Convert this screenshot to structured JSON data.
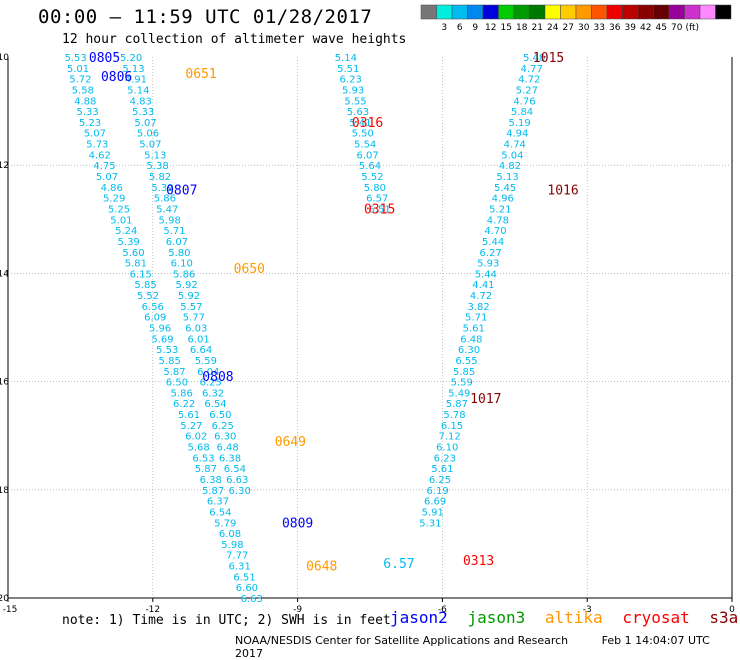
{
  "header": {
    "title": "00:00 — 11:59 UTC 01/28/2017",
    "subtitle": "12 hour collection of altimeter wave heights"
  },
  "colorbar": {
    "colors": [
      "#777777",
      "#00eedd",
      "#00bbee",
      "#0088ee",
      "#0000dd",
      "#00cc00",
      "#009900",
      "#007700",
      "#ffff00",
      "#ffcc00",
      "#ff9900",
      "#ff5500",
      "#ee0000",
      "#bb0000",
      "#880000",
      "#660000",
      "#990099",
      "#cc33cc",
      "#ff88ff",
      "#000000"
    ],
    "labels": [
      "3",
      "6",
      "9",
      "12",
      "15",
      "18",
      "21",
      "24",
      "27",
      "30",
      "33",
      "36",
      "39",
      "42",
      "45",
      "70",
      "(ft)"
    ]
  },
  "note": "note: 1) Time is in UTC; 2) SWH is in feet",
  "legend": [
    {
      "label": "jason2",
      "color": "#0000ff"
    },
    {
      "label": "jason3",
      "color": "#009900"
    },
    {
      "label": "altika",
      "color": "#ff9900"
    },
    {
      "label": "cryosat",
      "color": "#ff0000"
    },
    {
      "label": "s3a",
      "color": "#880000"
    }
  ],
  "footer": {
    "org": "NOAA/NESDIS Center for Satellite Applications and Research",
    "timestamp": "Feb  1 14:04:07 UTC 2017"
  },
  "chart_data": {
    "type": "scatter",
    "title": "00:00 — 11:59 UTC 01/28/2017",
    "xlim": [
      -15,
      0
    ],
    "ylim": [
      -20,
      -10
    ],
    "x_ticks": [
      "-15",
      "-12",
      "-9",
      "-6",
      "-3",
      "0"
    ],
    "y_ticks": [
      "-10",
      "-12",
      "-14",
      "-16",
      "-18",
      "-20"
    ],
    "tracks": [
      {
        "color": "#00bbee",
        "points": [
          {
            "x": -13.6,
            "y": -10.0,
            "v": "5.53"
          },
          {
            "x": -13.55,
            "y": -10.2,
            "v": "5.01"
          },
          {
            "x": -13.5,
            "y": -10.4,
            "v": "5.72"
          },
          {
            "x": -13.45,
            "y": -10.6,
            "v": "5.58"
          },
          {
            "x": -13.4,
            "y": -10.8,
            "v": "4.88"
          },
          {
            "x": -13.35,
            "y": -11.0,
            "v": "5.33"
          },
          {
            "x": -13.3,
            "y": -11.2,
            "v": "5.23"
          },
          {
            "x": -13.2,
            "y": -11.4,
            "v": "5.07"
          },
          {
            "x": -13.15,
            "y": -11.6,
            "v": "5.73"
          },
          {
            "x": -13.1,
            "y": -11.8,
            "v": "4.62"
          },
          {
            "x": -13.0,
            "y": -12.0,
            "v": "4.75"
          },
          {
            "x": -12.95,
            "y": -12.2,
            "v": "5.07"
          },
          {
            "x": -12.85,
            "y": -12.4,
            "v": "4.86"
          },
          {
            "x": -12.8,
            "y": -12.6,
            "v": "5.29"
          },
          {
            "x": -12.7,
            "y": -12.8,
            "v": "5.25"
          },
          {
            "x": -12.65,
            "y": -13.0,
            "v": "5.01"
          },
          {
            "x": -12.55,
            "y": -13.2,
            "v": "5.24"
          },
          {
            "x": -12.5,
            "y": -13.4,
            "v": "5.39"
          },
          {
            "x": -12.4,
            "y": -13.6,
            "v": "5.60"
          },
          {
            "x": -12.35,
            "y": -13.8,
            "v": "5.81"
          },
          {
            "x": -12.25,
            "y": -14.0,
            "v": "6.15"
          },
          {
            "x": -12.15,
            "y": -14.2,
            "v": "5.85"
          },
          {
            "x": -12.1,
            "y": -14.4,
            "v": "5.52"
          },
          {
            "x": -12.0,
            "y": -14.6,
            "v": "6.56"
          },
          {
            "x": -11.95,
            "y": -14.8,
            "v": "6.09"
          },
          {
            "x": -11.85,
            "y": -15.0,
            "v": "5.96"
          },
          {
            "x": -11.8,
            "y": -15.2,
            "v": "5.69"
          },
          {
            "x": -11.7,
            "y": -15.4,
            "v": "5.53"
          },
          {
            "x": -11.65,
            "y": -15.6,
            "v": "5.85"
          },
          {
            "x": -11.55,
            "y": -15.8,
            "v": "5.87"
          },
          {
            "x": -11.5,
            "y": -16.0,
            "v": "6.50"
          },
          {
            "x": -11.4,
            "y": -16.2,
            "v": "5.86"
          },
          {
            "x": -11.35,
            "y": -16.4,
            "v": "6.22"
          },
          {
            "x": -11.25,
            "y": -16.6,
            "v": "5.61"
          },
          {
            "x": -11.2,
            "y": -16.8,
            "v": "5.27"
          },
          {
            "x": -11.1,
            "y": -17.0,
            "v": "6.02"
          },
          {
            "x": -11.05,
            "y": -17.2,
            "v": "5.68"
          },
          {
            "x": -10.95,
            "y": -17.4,
            "v": "6.53"
          },
          {
            "x": -10.9,
            "y": -17.6,
            "v": "5.87"
          },
          {
            "x": -10.8,
            "y": -17.8,
            "v": "6.38"
          },
          {
            "x": -10.75,
            "y": -18.0,
            "v": "5.87"
          },
          {
            "x": -10.65,
            "y": -18.2,
            "v": "6.37"
          },
          {
            "x": -10.6,
            "y": -18.4,
            "v": "6.54"
          },
          {
            "x": -10.5,
            "y": -18.6,
            "v": "5.79"
          },
          {
            "x": -10.4,
            "y": -18.8,
            "v": "6.08"
          },
          {
            "x": -10.35,
            "y": -19.0,
            "v": "5.98"
          },
          {
            "x": -10.25,
            "y": -19.2,
            "v": "7.77"
          },
          {
            "x": -10.2,
            "y": -19.4,
            "v": "6.31"
          },
          {
            "x": -10.1,
            "y": -19.6,
            "v": "6.51"
          },
          {
            "x": -10.05,
            "y": -19.8,
            "v": "6.60"
          },
          {
            "x": -9.95,
            "y": -20.0,
            "v": "6.63"
          }
        ]
      },
      {
        "color": "#00bbee",
        "points": [
          {
            "x": -12.45,
            "y": -10.0,
            "v": "5.20"
          },
          {
            "x": -12.4,
            "y": -10.2,
            "v": "5.13"
          },
          {
            "x": -12.35,
            "y": -10.4,
            "v": "4.91"
          },
          {
            "x": -12.3,
            "y": -10.6,
            "v": "5.14"
          },
          {
            "x": -12.25,
            "y": -10.8,
            "v": "4.83"
          },
          {
            "x": -12.2,
            "y": -11.0,
            "v": "5.33"
          },
          {
            "x": -12.15,
            "y": -11.2,
            "v": "5.07"
          },
          {
            "x": -12.1,
            "y": -11.4,
            "v": "5.06"
          },
          {
            "x": -12.05,
            "y": -11.6,
            "v": "5.07"
          },
          {
            "x": -11.95,
            "y": -11.8,
            "v": "5.13"
          },
          {
            "x": -11.9,
            "y": -12.0,
            "v": "5.38"
          },
          {
            "x": -11.85,
            "y": -12.2,
            "v": "5.82"
          },
          {
            "x": -11.8,
            "y": -12.4,
            "v": "5.39"
          },
          {
            "x": -11.75,
            "y": -12.6,
            "v": "5.86"
          },
          {
            "x": -11.7,
            "y": -12.8,
            "v": "5.47"
          },
          {
            "x": -11.65,
            "y": -13.0,
            "v": "5.98"
          },
          {
            "x": -11.55,
            "y": -13.2,
            "v": "5.71"
          },
          {
            "x": -11.5,
            "y": -13.4,
            "v": "6.07"
          },
          {
            "x": -11.45,
            "y": -13.6,
            "v": "5.80"
          },
          {
            "x": -11.4,
            "y": -13.8,
            "v": "6.10"
          },
          {
            "x": -11.35,
            "y": -14.0,
            "v": "5.86"
          },
          {
            "x": -11.3,
            "y": -14.2,
            "v": "5.92"
          },
          {
            "x": -11.25,
            "y": -14.4,
            "v": "5.92"
          },
          {
            "x": -11.2,
            "y": -14.6,
            "v": "5.57"
          },
          {
            "x": -11.15,
            "y": -14.8,
            "v": "5.77"
          },
          {
            "x": -11.1,
            "y": -15.0,
            "v": "6.03"
          },
          {
            "x": -11.05,
            "y": -15.2,
            "v": "6.01"
          },
          {
            "x": -11.0,
            "y": -15.4,
            "v": "6.64"
          },
          {
            "x": -10.9,
            "y": -15.6,
            "v": "5.59"
          },
          {
            "x": -10.85,
            "y": -15.8,
            "v": "6.04"
          },
          {
            "x": -10.8,
            "y": -16.0,
            "v": "6.25"
          },
          {
            "x": -10.75,
            "y": -16.2,
            "v": "6.32"
          },
          {
            "x": -10.7,
            "y": -16.4,
            "v": "6.54"
          },
          {
            "x": -10.6,
            "y": -16.6,
            "v": "6.50"
          },
          {
            "x": -10.55,
            "y": -16.8,
            "v": "6.25"
          },
          {
            "x": -10.5,
            "y": -17.0,
            "v": "6.30"
          },
          {
            "x": -10.45,
            "y": -17.2,
            "v": "6.48"
          },
          {
            "x": -10.4,
            "y": -17.4,
            "v": "6.38"
          },
          {
            "x": -10.3,
            "y": -17.6,
            "v": "6.54"
          },
          {
            "x": -10.25,
            "y": -17.8,
            "v": "6.63"
          },
          {
            "x": -10.2,
            "y": -18.0,
            "v": "6.30"
          }
        ]
      },
      {
        "color": "#00bbee",
        "points": [
          {
            "x": -8.0,
            "y": -10.0,
            "v": "5.14"
          },
          {
            "x": -7.95,
            "y": -10.2,
            "v": "5.51"
          },
          {
            "x": -7.9,
            "y": -10.4,
            "v": "6.23"
          },
          {
            "x": -7.85,
            "y": -10.6,
            "v": "5.93"
          },
          {
            "x": -7.8,
            "y": -10.8,
            "v": "5.55"
          },
          {
            "x": -7.75,
            "y": -11.0,
            "v": "5.63"
          },
          {
            "x": -7.7,
            "y": -11.2,
            "v": "5.41"
          },
          {
            "x": -7.65,
            "y": -11.4,
            "v": "5.50"
          },
          {
            "x": -7.6,
            "y": -11.6,
            "v": "5.54"
          },
          {
            "x": -7.55,
            "y": -11.8,
            "v": "6.07"
          },
          {
            "x": -7.5,
            "y": -12.0,
            "v": "5.64"
          },
          {
            "x": -7.45,
            "y": -12.2,
            "v": "5.52"
          },
          {
            "x": -7.4,
            "y": -12.4,
            "v": "5.80"
          },
          {
            "x": -7.35,
            "y": -12.6,
            "v": "6.57"
          },
          {
            "x": -7.3,
            "y": -12.8,
            "v": "6.51"
          }
        ]
      },
      {
        "color": "#00bbee",
        "points": [
          {
            "x": -4.1,
            "y": -10.0,
            "v": "5.48"
          },
          {
            "x": -4.15,
            "y": -10.2,
            "v": "4.77"
          },
          {
            "x": -4.2,
            "y": -10.4,
            "v": "4.72"
          },
          {
            "x": -4.25,
            "y": -10.6,
            "v": "5.27"
          },
          {
            "x": -4.3,
            "y": -10.8,
            "v": "4.76"
          },
          {
            "x": -4.35,
            "y": -11.0,
            "v": "5.84"
          },
          {
            "x": -4.4,
            "y": -11.2,
            "v": "5.19"
          },
          {
            "x": -4.45,
            "y": -11.4,
            "v": "4.94"
          },
          {
            "x": -4.5,
            "y": -11.6,
            "v": "4.74"
          },
          {
            "x": -4.55,
            "y": -11.8,
            "v": "5.04"
          },
          {
            "x": -4.6,
            "y": -12.0,
            "v": "4.82"
          },
          {
            "x": -4.65,
            "y": -12.2,
            "v": "5.13"
          },
          {
            "x": -4.7,
            "y": -12.4,
            "v": "5.45"
          },
          {
            "x": -4.75,
            "y": -12.6,
            "v": "4.96"
          },
          {
            "x": -4.8,
            "y": -12.8,
            "v": "5.21"
          },
          {
            "x": -4.85,
            "y": -13.0,
            "v": "4.78"
          },
          {
            "x": -4.9,
            "y": -13.2,
            "v": "4.70"
          },
          {
            "x": -4.95,
            "y": -13.4,
            "v": "5.44"
          },
          {
            "x": -5.0,
            "y": -13.6,
            "v": "6.27"
          },
          {
            "x": -5.05,
            "y": -13.8,
            "v": "5.93"
          },
          {
            "x": -5.1,
            "y": -14.0,
            "v": "5.44"
          },
          {
            "x": -5.15,
            "y": -14.2,
            "v": "4.41"
          },
          {
            "x": -5.2,
            "y": -14.4,
            "v": "4.72"
          },
          {
            "x": -5.25,
            "y": -14.6,
            "v": "3.82"
          },
          {
            "x": -5.3,
            "y": -14.8,
            "v": "5.71"
          },
          {
            "x": -5.35,
            "y": -15.0,
            "v": "5.61"
          },
          {
            "x": -5.4,
            "y": -15.2,
            "v": "6.48"
          },
          {
            "x": -5.45,
            "y": -15.4,
            "v": "6.30"
          },
          {
            "x": -5.5,
            "y": -15.6,
            "v": "6.55"
          },
          {
            "x": -5.55,
            "y": -15.8,
            "v": "5.85"
          },
          {
            "x": -5.6,
            "y": -16.0,
            "v": "5.59"
          },
          {
            "x": -5.65,
            "y": -16.2,
            "v": "5.49"
          },
          {
            "x": -5.7,
            "y": -16.4,
            "v": "5.87"
          },
          {
            "x": -5.75,
            "y": -16.6,
            "v": "5.78"
          },
          {
            "x": -5.8,
            "y": -16.8,
            "v": "6.15"
          },
          {
            "x": -5.85,
            "y": -17.0,
            "v": "7.12"
          },
          {
            "x": -5.9,
            "y": -17.2,
            "v": "6.10"
          },
          {
            "x": -5.95,
            "y": -17.4,
            "v": "6.23"
          },
          {
            "x": -6.0,
            "y": -17.6,
            "v": "5.61"
          },
          {
            "x": -6.05,
            "y": -17.8,
            "v": "6.25"
          },
          {
            "x": -6.1,
            "y": -18.0,
            "v": "6.19"
          },
          {
            "x": -6.15,
            "y": -18.2,
            "v": "6.69"
          },
          {
            "x": -6.2,
            "y": -18.4,
            "v": "5.91"
          },
          {
            "x": -6.25,
            "y": -18.6,
            "v": "5.31"
          }
        ]
      }
    ],
    "time_labels": [
      {
        "x": -13.0,
        "y": -10.0,
        "text": "0805",
        "color": "#0000ff"
      },
      {
        "x": -12.75,
        "y": -10.35,
        "text": "0806",
        "color": "#0000ff"
      },
      {
        "x": -11.0,
        "y": -10.3,
        "text": "0651",
        "color": "#ff9900"
      },
      {
        "x": -7.55,
        "y": -11.2,
        "text": "0316",
        "color": "#ff0000"
      },
      {
        "x": -3.8,
        "y": -10.0,
        "text": "1015",
        "color": "#880000"
      },
      {
        "x": -3.5,
        "y": -12.45,
        "text": "1016",
        "color": "#880000"
      },
      {
        "x": -7.3,
        "y": -12.8,
        "text": "0315",
        "color": "#ff0000"
      },
      {
        "x": -11.4,
        "y": -12.45,
        "text": "0807",
        "color": "#0000ff"
      },
      {
        "x": -10.0,
        "y": -13.9,
        "text": "0650",
        "color": "#ff9900"
      },
      {
        "x": -10.65,
        "y": -15.9,
        "text": "0808",
        "color": "#0000ff"
      },
      {
        "x": -5.1,
        "y": -16.3,
        "text": "1017",
        "color": "#880000"
      },
      {
        "x": -9.15,
        "y": -17.1,
        "text": "0649",
        "color": "#ff9900"
      },
      {
        "x": -9.0,
        "y": -18.6,
        "text": "0809",
        "color": "#0000ff"
      },
      {
        "x": -8.5,
        "y": -19.4,
        "text": "0648",
        "color": "#ff9900"
      },
      {
        "x": -5.25,
        "y": -19.3,
        "text": "0313",
        "color": "#ff0000"
      },
      {
        "x": -6.9,
        "y": -19.35,
        "text": "6.57",
        "color": "#00bbee"
      }
    ]
  }
}
